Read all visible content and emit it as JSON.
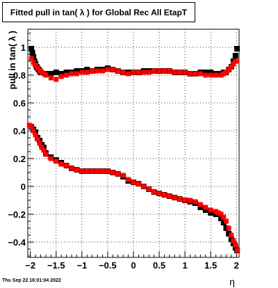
{
  "chart_data": {
    "type": "scatter",
    "title": "Fitted pull in tan( λ ) for Global Rec All EtapT",
    "xlabel": "η",
    "ylabel": "pull in tan( λ )",
    "xlim": [
      -2.05,
      2.05
    ],
    "ylim": [
      -0.51,
      1.13
    ],
    "xticks": [
      -2,
      -1.5,
      -1,
      -0.5,
      0,
      0.5,
      1,
      1.5,
      2
    ],
    "xtick_labels": [
      "−2",
      "−1.5",
      "−1",
      "−0.5",
      "0",
      "0.5",
      "1",
      "1.5",
      "2"
    ],
    "yticks": [
      -0.4,
      -0.2,
      0,
      0.2,
      0.4,
      0.6,
      0.8,
      1
    ],
    "ytick_labels": [
      "−0.4",
      "−0.2",
      "0",
      "0.2",
      "0.4",
      "0.6",
      "0.8",
      "1"
    ],
    "grid": true,
    "series": [
      {
        "color": "#000000",
        "marker": "square",
        "upper": {
          "x": [
            -1.98,
            -1.96,
            -1.94,
            -1.92,
            -1.9,
            -1.88,
            -1.86,
            -1.84,
            -1.82,
            -1.8,
            -1.7,
            -1.6,
            -1.5,
            -1.4,
            -1.3,
            -1.2,
            -1.1,
            -1.0,
            -0.9,
            -0.8,
            -0.7,
            -0.6,
            -0.5,
            -0.4,
            -0.3,
            -0.2,
            -0.1,
            0.0,
            0.1,
            0.2,
            0.3,
            0.4,
            0.5,
            0.6,
            0.7,
            0.8,
            0.9,
            1.0,
            1.1,
            1.2,
            1.3,
            1.4,
            1.5,
            1.6,
            1.7,
            1.75,
            1.8,
            1.85,
            1.9,
            1.94,
            1.98,
            2.01
          ],
          "y": [
            0.99,
            0.96,
            0.93,
            0.9,
            0.88,
            0.86,
            0.85,
            0.84,
            0.83,
            0.82,
            0.81,
            0.81,
            0.82,
            0.81,
            0.82,
            0.82,
            0.83,
            0.83,
            0.84,
            0.83,
            0.84,
            0.84,
            0.85,
            0.84,
            0.83,
            0.82,
            0.82,
            0.82,
            0.82,
            0.83,
            0.83,
            0.83,
            0.83,
            0.83,
            0.83,
            0.82,
            0.82,
            0.82,
            0.81,
            0.81,
            0.82,
            0.82,
            0.82,
            0.81,
            0.81,
            0.82,
            0.82,
            0.84,
            0.86,
            0.9,
            0.94,
            0.99
          ]
        },
        "lower": {
          "x": [
            -1.98,
            -1.94,
            -1.9,
            -1.86,
            -1.82,
            -1.78,
            -1.74,
            -1.7,
            -1.6,
            -1.5,
            -1.4,
            -1.3,
            -1.2,
            -1.1,
            -1.0,
            -0.9,
            -0.8,
            -0.7,
            -0.6,
            -0.5,
            -0.4,
            -0.3,
            -0.2,
            -0.1,
            0.0,
            0.1,
            0.2,
            0.3,
            0.4,
            0.5,
            0.6,
            0.7,
            0.8,
            0.9,
            1.0,
            1.1,
            1.2,
            1.3,
            1.4,
            1.5,
            1.6,
            1.7,
            1.75,
            1.8,
            1.85,
            1.9,
            1.94,
            1.98,
            2.01
          ],
          "y": [
            0.43,
            0.41,
            0.39,
            0.35,
            0.33,
            0.3,
            0.28,
            0.24,
            0.21,
            0.19,
            0.17,
            0.15,
            0.13,
            0.12,
            0.11,
            0.11,
            0.11,
            0.11,
            0.11,
            0.11,
            0.1,
            0.09,
            0.07,
            0.04,
            0.03,
            0.02,
            0.0,
            -0.02,
            -0.04,
            -0.05,
            -0.06,
            -0.07,
            -0.08,
            -0.09,
            -0.1,
            -0.11,
            -0.12,
            -0.15,
            -0.17,
            -0.19,
            -0.2,
            -0.23,
            -0.26,
            -0.3,
            -0.34,
            -0.38,
            -0.41,
            -0.44,
            -0.46
          ]
        }
      },
      {
        "color": "#ff0000",
        "marker": "square",
        "upper": {
          "x": [
            -1.98,
            -1.94,
            -1.9,
            -1.86,
            -1.82,
            -1.78,
            -1.74,
            -1.7,
            -1.6,
            -1.5,
            -1.4,
            -1.3,
            -1.2,
            -1.1,
            -1.0,
            -0.9,
            -0.8,
            -0.7,
            -0.6,
            -0.5,
            -0.4,
            -0.3,
            -0.2,
            -0.1,
            0.0,
            0.1,
            0.2,
            0.3,
            0.4,
            0.5,
            0.6,
            0.7,
            0.8,
            0.9,
            1.0,
            1.1,
            1.2,
            1.3,
            1.4,
            1.5,
            1.6,
            1.7,
            1.75,
            1.8,
            1.85,
            1.9,
            1.94,
            1.98,
            2.01
          ],
          "y": [
            0.92,
            0.89,
            0.87,
            0.85,
            0.83,
            0.82,
            0.81,
            0.8,
            0.78,
            0.77,
            0.79,
            0.8,
            0.81,
            0.81,
            0.82,
            0.82,
            0.83,
            0.83,
            0.83,
            0.84,
            0.84,
            0.83,
            0.82,
            0.81,
            0.82,
            0.82,
            0.82,
            0.82,
            0.83,
            0.83,
            0.83,
            0.83,
            0.82,
            0.82,
            0.82,
            0.81,
            0.81,
            0.81,
            0.8,
            0.8,
            0.8,
            0.8,
            0.81,
            0.82,
            0.84,
            0.86,
            0.88,
            0.9,
            0.9
          ]
        },
        "lower": {
          "x": [
            -2.02,
            -1.98,
            -1.94,
            -1.9,
            -1.86,
            -1.82,
            -1.78,
            -1.74,
            -1.7,
            -1.6,
            -1.5,
            -1.4,
            -1.3,
            -1.2,
            -1.1,
            -1.0,
            -0.9,
            -0.8,
            -0.7,
            -0.6,
            -0.5,
            -0.4,
            -0.3,
            -0.2,
            -0.1,
            0.0,
            0.1,
            0.2,
            0.3,
            0.4,
            0.5,
            0.6,
            0.7,
            0.8,
            0.9,
            1.0,
            1.1,
            1.2,
            1.3,
            1.4,
            1.5,
            1.6,
            1.65,
            1.7,
            1.75,
            1.8,
            1.85,
            1.9,
            1.94,
            1.98,
            2.02
          ],
          "y": [
            0.44,
            0.43,
            0.4,
            0.37,
            0.34,
            0.31,
            0.28,
            0.26,
            0.23,
            0.2,
            0.18,
            0.16,
            0.15,
            0.13,
            0.12,
            0.11,
            0.11,
            0.11,
            0.11,
            0.11,
            0.11,
            0.1,
            0.09,
            0.08,
            0.05,
            0.03,
            0.02,
            0.0,
            -0.02,
            -0.04,
            -0.05,
            -0.06,
            -0.07,
            -0.08,
            -0.09,
            -0.1,
            -0.1,
            -0.11,
            -0.13,
            -0.15,
            -0.17,
            -0.18,
            -0.19,
            -0.2,
            -0.22,
            -0.25,
            -0.3,
            -0.35,
            -0.39,
            -0.42,
            -0.46
          ]
        }
      }
    ]
  },
  "footer": {
    "timestamp": "Thu Sep 22 16:01:04 2022"
  }
}
